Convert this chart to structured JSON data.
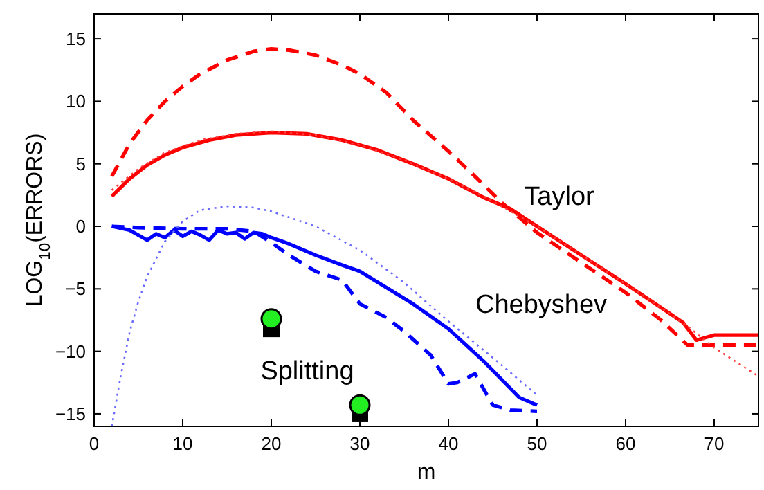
{
  "chart_data": {
    "type": "line",
    "xlabel": "m",
    "ylabel": "LOG$_{10}$(ERRORS)",
    "xlim": [
      0,
      75
    ],
    "ylim": [
      -16,
      17
    ],
    "xticks": [
      0,
      10,
      20,
      30,
      40,
      50,
      60,
      70
    ],
    "yticks": [
      -15,
      -10,
      -5,
      0,
      5,
      10,
      15
    ],
    "grid": false,
    "series": [
      {
        "color": "#ff0000",
        "line_style": "dashed",
        "x": [
          2,
          4,
          6,
          8,
          10,
          12,
          15,
          18,
          20,
          22,
          25,
          28,
          30,
          33,
          36,
          40,
          43,
          46,
          50,
          55,
          60,
          64,
          67,
          68,
          70,
          75
        ],
        "values": [
          4,
          6.6,
          8.5,
          10,
          11.2,
          12.2,
          13.3,
          14,
          14.2,
          14.1,
          13.7,
          12.9,
          12.2,
          10.7,
          8.5,
          6,
          4,
          1.9,
          -0.5,
          -2.9,
          -5.3,
          -7.5,
          -9.5,
          -9.5,
          -9.5,
          -9.5
        ]
      },
      {
        "color": "#ff0000",
        "line_style": "solid",
        "x": [
          2,
          4,
          6,
          8,
          10,
          13,
          16,
          20,
          24,
          28,
          32,
          36,
          40,
          44,
          47,
          50,
          55,
          60,
          64,
          66.5,
          68,
          70,
          75
        ],
        "values": [
          2.4,
          3.8,
          4.9,
          5.7,
          6.3,
          6.9,
          7.3,
          7.5,
          7.4,
          6.9,
          6.1,
          5,
          3.8,
          2.3,
          1.4,
          0,
          -2.3,
          -4.6,
          -6.5,
          -7.7,
          -9.1,
          -8.7,
          -8.7
        ]
      },
      {
        "color": "#ff4040",
        "line_style": "dotted",
        "x": [
          2,
          5,
          8,
          12,
          16,
          20,
          25,
          30,
          35,
          40,
          45,
          50,
          55,
          60,
          64,
          67,
          70,
          75
        ],
        "values": [
          2.9,
          4.6,
          5.9,
          6.9,
          7.4,
          7.6,
          7.3,
          6.5,
          5.3,
          3.8,
          2,
          0,
          -2.3,
          -4.6,
          -6.5,
          -8,
          -9.7,
          -12
        ]
      },
      {
        "color": "#0000ff",
        "line_style": "solid",
        "x": [
          2,
          4,
          6,
          7,
          8,
          9,
          10,
          11,
          12,
          13,
          14,
          15,
          16,
          17,
          18,
          19,
          20,
          22,
          25,
          28,
          30,
          33,
          36,
          40,
          44,
          48,
          50
        ],
        "values": [
          0,
          -0.3,
          -1.1,
          -0.6,
          -0.9,
          -0.3,
          -0.8,
          -0.4,
          -0.7,
          -1.1,
          -0.3,
          -0.6,
          -0.5,
          -1,
          -0.5,
          -0.6,
          -0.9,
          -1.4,
          -2.3,
          -3.1,
          -3.6,
          -4.9,
          -6.2,
          -8.2,
          -10.8,
          -13.7,
          -14.3
        ]
      },
      {
        "color": "#0000ff",
        "line_style": "dashed",
        "x": [
          2,
          5,
          10,
          15,
          18,
          20,
          22,
          25,
          28,
          30,
          33,
          35,
          38,
          40,
          41,
          43,
          45,
          47,
          50
        ],
        "values": [
          0,
          -0.1,
          -0.2,
          -0.2,
          -0.4,
          -1.3,
          -2.3,
          -3.6,
          -4.3,
          -6.2,
          -7.3,
          -8.4,
          -10.3,
          -12.6,
          -12.5,
          -11.8,
          -14.3,
          -14.7,
          -14.8
        ]
      },
      {
        "color": "#6a6aff",
        "line_style": "dotted",
        "x": [
          2,
          3,
          4,
          5,
          6,
          8,
          10,
          12,
          15,
          18,
          20,
          25,
          30,
          35,
          40,
          45,
          50
        ],
        "values": [
          -16,
          -12,
          -8.5,
          -6,
          -4,
          -1.2,
          0.4,
          1.3,
          1.6,
          1.5,
          1.2,
          0,
          -1.9,
          -4.5,
          -7.6,
          -10.5,
          -13.5
        ]
      },
      {
        "type": "scatter",
        "color": "#000000",
        "marker": "square",
        "x": [
          20,
          30
        ],
        "values": [
          -8.2,
          -15
        ]
      },
      {
        "type": "scatter",
        "color": "#22ee22",
        "marker": "circle",
        "x": [
          20,
          30
        ],
        "values": [
          -7.4,
          -14.3
        ]
      }
    ],
    "annotations": [
      "Taylor",
      "Chebyshev",
      "Splitting"
    ]
  }
}
